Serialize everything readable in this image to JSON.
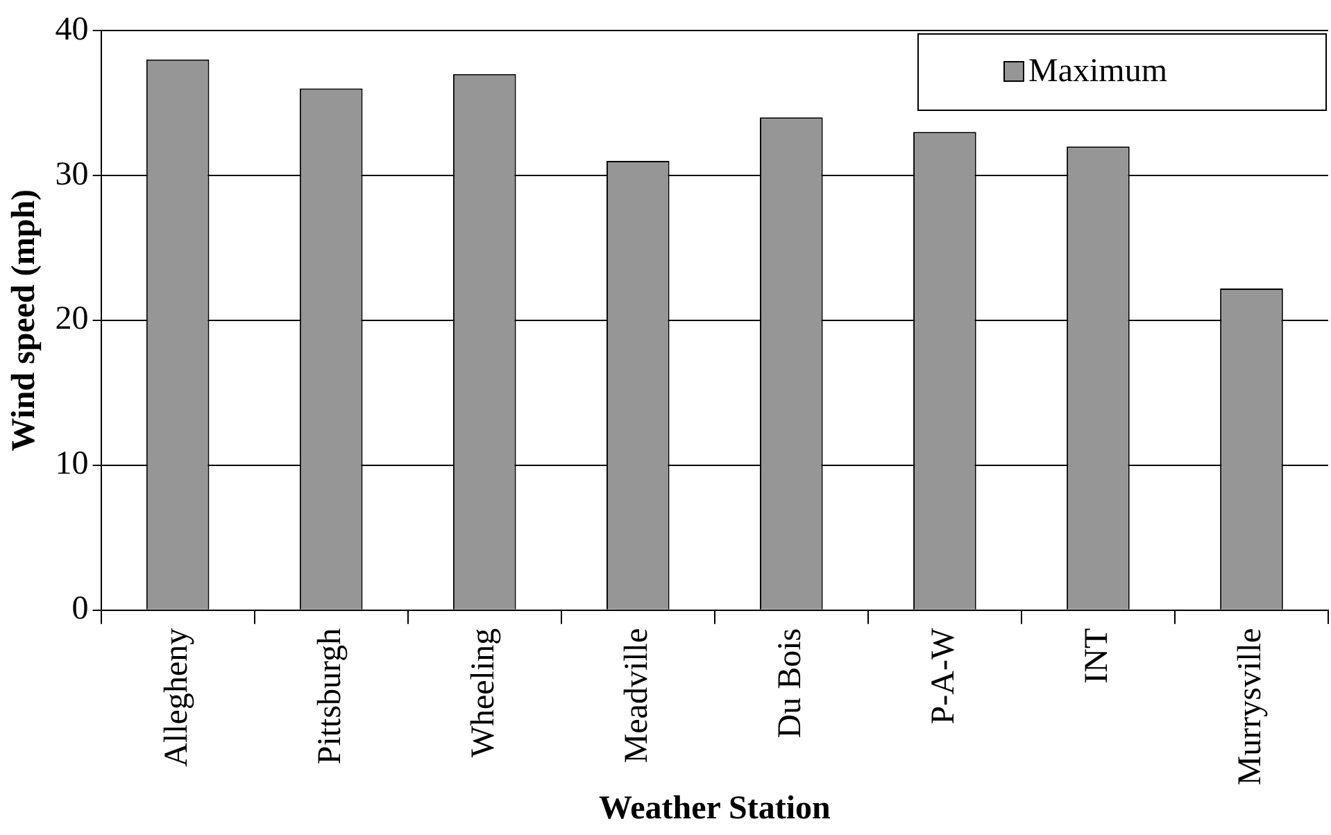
{
  "chart_data": {
    "type": "bar",
    "xlabel": "Weather Station",
    "ylabel": "Wind speed (mph)",
    "categories": [
      "Allegheny",
      "Pittsburgh",
      "Wheeling",
      "Meadville",
      "Du Bois",
      "P-A-W",
      "INT",
      "Murrysville"
    ],
    "series": [
      {
        "name": "Maximum",
        "color": "#969696",
        "values": [
          38,
          36,
          37,
          31,
          34,
          33,
          32,
          22.2
        ]
      }
    ],
    "ylim": [
      0,
      40
    ],
    "yticks": [
      0,
      10,
      20,
      30,
      40
    ],
    "grid": "y",
    "legend": "top right"
  }
}
